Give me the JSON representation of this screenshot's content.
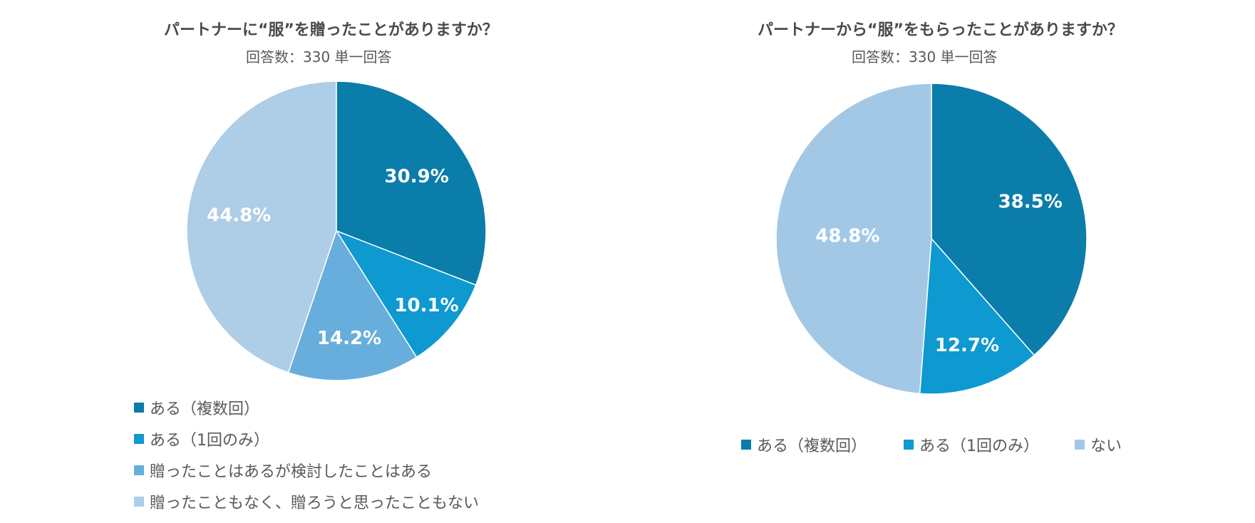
{
  "chart_data": [
    {
      "type": "pie",
      "title": "パートナーに“服”を贈ったことがありますか？",
      "subtitle": "回答数：330 単一回答",
      "slices": [
        {
          "label": "ある（複数回）",
          "value": 30.9,
          "value_label": "30.9%",
          "color": "#0a7dab"
        },
        {
          "label": "ある（1回のみ）",
          "value": 10.1,
          "value_label": "10.1%",
          "color": "#0e99d1"
        },
        {
          "label": "贈ったことはあるが検討したことはある",
          "value": 14.2,
          "value_label": "14.2%",
          "color": "#67aedc"
        },
        {
          "label": "贈ったこともなく、贈ろうと思ったこともない",
          "value": 44.8,
          "value_label": "44.8%",
          "color": "#aecde6"
        }
      ],
      "legend_position": "bottom"
    },
    {
      "type": "pie",
      "title": "パートナーから“服”をもらったことがありますか？",
      "subtitle": "回答数：330 単一回答",
      "slices": [
        {
          "label": "ある（複数回）",
          "value": 38.5,
          "value_label": "38.5%",
          "color": "#0a7dab"
        },
        {
          "label": "ある（1回のみ）",
          "value": 12.7,
          "value_label": "12.7%",
          "color": "#0e99d1"
        },
        {
          "label": "ない",
          "value": 48.8,
          "value_label": "48.8%",
          "color": "#a3c8e6"
        }
      ],
      "legend_position": "bottom"
    }
  ]
}
